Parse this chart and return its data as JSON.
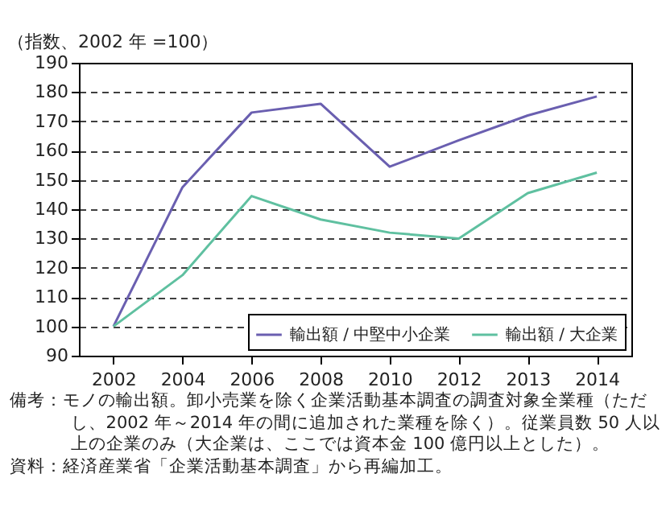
{
  "chart_data": {
    "type": "line",
    "ylabel": "（指数、2002 年 =100）",
    "categories": [
      "2002",
      "2004",
      "2006",
      "2008",
      "2010",
      "2012",
      "2013",
      "2014"
    ],
    "series": [
      {
        "name": "輸出額 / 中堅中小企業",
        "color": "#6a5fb0",
        "values": [
          100,
          147.5,
          173,
          176,
          154.5,
          163.5,
          172,
          178.5
        ]
      },
      {
        "name": "輸出額 / 大企業",
        "color": "#5fc0a0",
        "values": [
          100,
          117.5,
          144.5,
          136.5,
          132,
          130,
          145.5,
          152.5
        ]
      }
    ],
    "ylim": [
      90,
      190
    ],
    "yticks": [
      90,
      100,
      110,
      120,
      130,
      140,
      150,
      160,
      170,
      180,
      190
    ],
    "grid": "y",
    "legend": "bottom right",
    "line_style": "solid",
    "marker": "none",
    "annotations": [
      "備考：モノの輸出額。卸小売業を除く企業活動基本調査の調査対象全業種（ただし、2002 年～2014 年の間に追加された業種を除く）。従業員数 50 人以上の企業のみ（大企業は、ここでは資本金 100 億円以上とした）。",
      "資料：経済産業省「企業活動基本調査」から再編加工。"
    ]
  }
}
